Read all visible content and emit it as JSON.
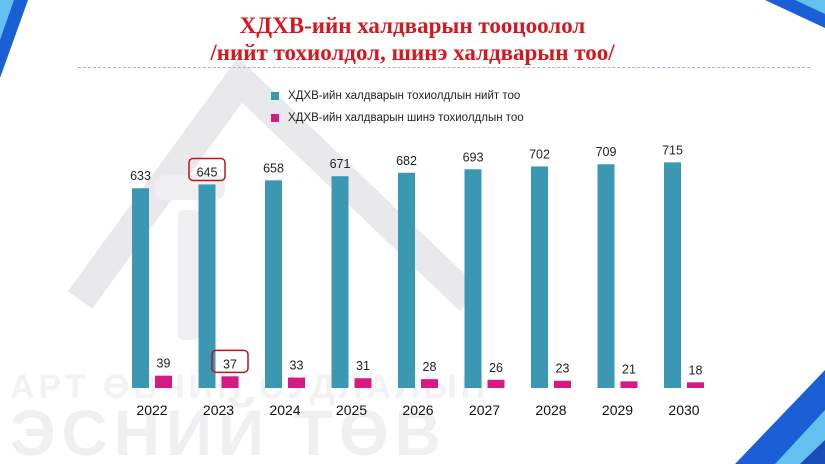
{
  "title": {
    "line1": "ХДХВ-ийн халдварын тооцоолол",
    "line2": "/нийт тохиолдол, шинэ халдварын тоо/"
  },
  "colors": {
    "title": "#d4181f",
    "series_total": "#3a98b2",
    "series_new": "#d41b84",
    "highlight": "#c0121d",
    "accent_blue": "#1a5fd6"
  },
  "chart_data": {
    "type": "bar",
    "categories": [
      "2022",
      "2023",
      "2024",
      "2025",
      "2026",
      "2027",
      "2028",
      "2029",
      "2030"
    ],
    "series": [
      {
        "name": "ХДХВ-ийн халдварын тохиолдлын нийт тоо",
        "values": [
          633,
          645,
          658,
          671,
          682,
          693,
          702,
          709,
          715
        ]
      },
      {
        "name": "ХДХВ-ийн халдварын шинэ тохиолдлын тоо",
        "values": [
          39,
          37,
          33,
          31,
          28,
          26,
          23,
          21,
          18
        ]
      }
    ],
    "ylim": [
      0,
      780
    ],
    "grid": false,
    "legend_position": "top",
    "highlighted_category": "2023"
  }
}
